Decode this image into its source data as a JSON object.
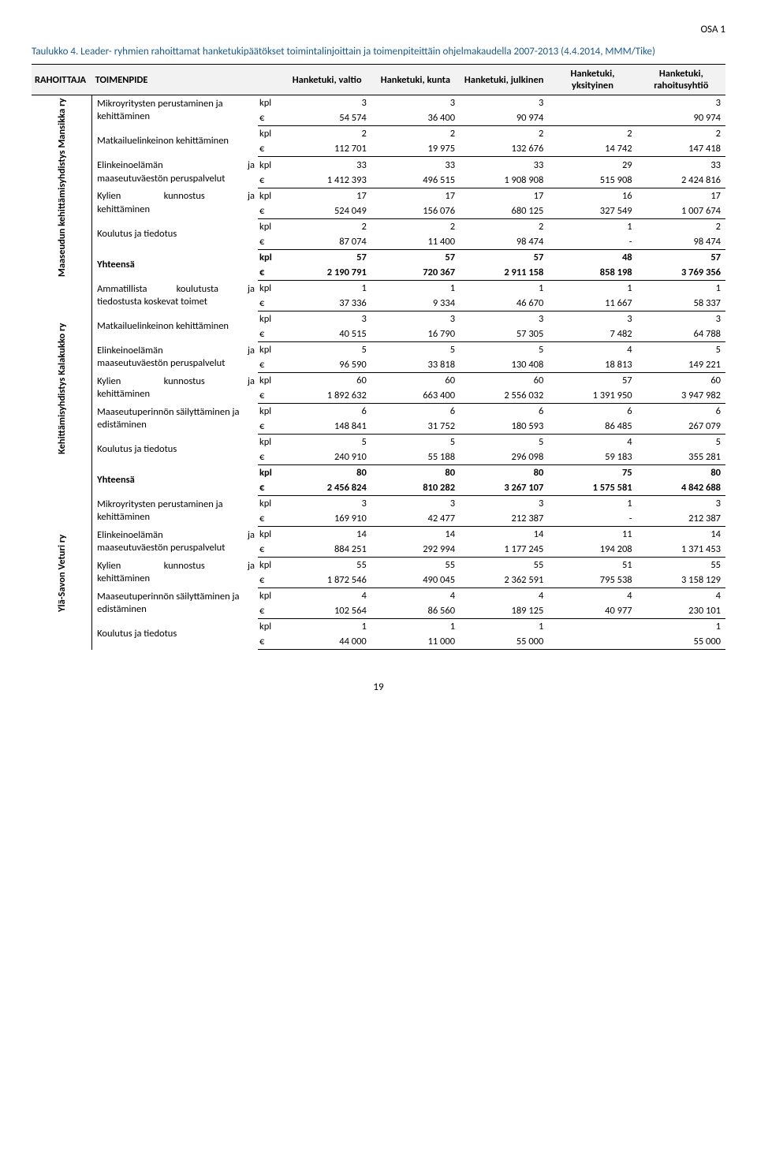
{
  "header": {
    "osa": "OSA 1"
  },
  "caption": "Taulukko 4. Leader- ryhmien rahoittamat hanketukipäätökset toimintalinjoittain ja toimenpiteittäin ohjelmakaudella 2007-2013 (4.4.2014, MMM/Tike)",
  "columns": {
    "rahoittaja": "RAHOITTAJA",
    "toimenpide": "TOIMENPIDE",
    "valtio": "Hanketuki, valtio",
    "kunta": "Hanketuki, kunta",
    "julkinen": "Hanketuki, julkinen",
    "yksityinen": "Hanketuki, yksityinen",
    "rahoitusyhtio": "Hanketuki, rahoitusyhtiö"
  },
  "units": {
    "kpl": "kpl",
    "eur": "€"
  },
  "groups": [
    {
      "rahoittaja": "Maaseudun kehittämisyhdistys Mansikka ry",
      "rows": [
        {
          "toimenpide": "Mikroyritysten perustaminen ja kehittäminen",
          "kpl": [
            "3",
            "3",
            "3",
            "",
            "3"
          ],
          "eur": [
            "54 574",
            "36 400",
            "90 974",
            "",
            "90 974"
          ]
        },
        {
          "toimenpide": "Matkailuelinkeinon kehittäminen",
          "kpl": [
            "2",
            "2",
            "2",
            "2",
            "2"
          ],
          "eur": [
            "112 701",
            "19 975",
            "132 676",
            "14 742",
            "147 418"
          ]
        },
        {
          "toimenpide": "Elinkeinoelämän ja maaseutuväestön peruspalvelut",
          "tp_split": [
            "Elinkeinoelämän",
            "ja",
            "maaseutuväestön peruspalvelut"
          ],
          "kpl": [
            "33",
            "33",
            "33",
            "29",
            "33"
          ],
          "eur": [
            "1 412 393",
            "496 515",
            "1 908 908",
            "515 908",
            "2 424 816"
          ]
        },
        {
          "toimenpide": "Kylien kunnostus ja kehittäminen",
          "tp_split": [
            "Kylien",
            "kunnostus",
            "ja",
            "kehittäminen"
          ],
          "kpl": [
            "17",
            "17",
            "17",
            "16",
            "17"
          ],
          "eur": [
            "524 049",
            "156 076",
            "680 125",
            "327 549",
            "1 007 674"
          ]
        },
        {
          "toimenpide": "Koulutus ja tiedotus",
          "kpl": [
            "2",
            "2",
            "2",
            "1",
            "2"
          ],
          "eur": [
            "87 074",
            "11 400",
            "98 474",
            "-",
            "98 474"
          ]
        }
      ],
      "yhteensa": {
        "label": "Yhteensä",
        "kpl": [
          "57",
          "57",
          "57",
          "48",
          "57"
        ],
        "eur": [
          "2 190 791",
          "720 367",
          "2 911 158",
          "858 198",
          "3 769 356"
        ]
      }
    },
    {
      "rahoittaja": "Kehittämisyhdistys Kalakukko ry",
      "rows": [
        {
          "toimenpide": "Ammatillista koulutusta ja tiedostusta koskevat toimet",
          "tp_split": [
            "Ammatillista",
            "koulutusta",
            "ja",
            "tiedostusta koskevat toimet"
          ],
          "kpl": [
            "1",
            "1",
            "1",
            "1",
            "1"
          ],
          "eur": [
            "37 336",
            "9 334",
            "46 670",
            "11 667",
            "58 337"
          ]
        },
        {
          "toimenpide": "Matkailuelinkeinon kehittäminen",
          "kpl": [
            "3",
            "3",
            "3",
            "3",
            "3"
          ],
          "eur": [
            "40 515",
            "16 790",
            "57 305",
            "7 482",
            "64 788"
          ]
        },
        {
          "toimenpide": "Elinkeinoelämän ja maaseutuväestön peruspalvelut",
          "tp_split": [
            "Elinkeinoelämän",
            "ja",
            "maaseutuväestön peruspalvelut"
          ],
          "kpl": [
            "5",
            "5",
            "5",
            "4",
            "5"
          ],
          "eur": [
            "96 590",
            "33 818",
            "130 408",
            "18 813",
            "149 221"
          ]
        },
        {
          "toimenpide": "Kylien kunnostus ja kehittäminen",
          "tp_split": [
            "Kylien",
            "kunnostus",
            "ja",
            "kehittäminen"
          ],
          "kpl": [
            "60",
            "60",
            "60",
            "57",
            "60"
          ],
          "eur": [
            "1 892 632",
            "663 400",
            "2 556 032",
            "1 391 950",
            "3 947 982"
          ]
        },
        {
          "toimenpide": "Maaseutuperinnön säilyttäminen ja edistäminen",
          "kpl": [
            "6",
            "6",
            "6",
            "6",
            "6"
          ],
          "eur": [
            "148 841",
            "31 752",
            "180 593",
            "86 485",
            "267 079"
          ]
        },
        {
          "toimenpide": "Koulutus ja tiedotus",
          "kpl": [
            "5",
            "5",
            "5",
            "4",
            "5"
          ],
          "eur": [
            "240 910",
            "55 188",
            "296 098",
            "59 183",
            "355 281"
          ]
        }
      ],
      "yhteensa": {
        "label": "Yhteensä",
        "kpl": [
          "80",
          "80",
          "80",
          "75",
          "80"
        ],
        "eur": [
          "2 456 824",
          "810 282",
          "3 267 107",
          "1 575 581",
          "4 842 688"
        ]
      }
    },
    {
      "rahoittaja": "Ylä-Savon Veturi ry",
      "rows": [
        {
          "toimenpide": "Mikroyritysten perustaminen ja kehittäminen",
          "kpl": [
            "3",
            "3",
            "3",
            "1",
            "3"
          ],
          "eur": [
            "169 910",
            "42 477",
            "212 387",
            "-",
            "212 387"
          ]
        },
        {
          "toimenpide": "Elinkeinoelämän ja maaseutuväestön peruspalvelut",
          "tp_split": [
            "Elinkeinoelämän",
            "ja",
            "maaseutuväestön peruspalvelut"
          ],
          "kpl": [
            "14",
            "14",
            "14",
            "11",
            "14"
          ],
          "eur": [
            "884 251",
            "292 994",
            "1 177 245",
            "194 208",
            "1 371 453"
          ]
        },
        {
          "toimenpide": "Kylien kunnostus ja kehittäminen",
          "tp_split": [
            "Kylien",
            "kunnostus",
            "ja",
            "kehittäminen"
          ],
          "kpl": [
            "55",
            "55",
            "55",
            "51",
            "55"
          ],
          "eur": [
            "1 872 546",
            "490 045",
            "2 362 591",
            "795 538",
            "3 158 129"
          ]
        },
        {
          "toimenpide": "Maaseutuperinnön säilyttäminen ja edistäminen",
          "kpl": [
            "4",
            "4",
            "4",
            "4",
            "4"
          ],
          "eur": [
            "102 564",
            "86 560",
            "189 125",
            "40 977",
            "230 101"
          ]
        },
        {
          "toimenpide": "Koulutus ja tiedotus",
          "kpl": [
            "1",
            "1",
            "1",
            "",
            "1"
          ],
          "eur": [
            "44 000",
            "11 000",
            "55 000",
            "",
            "55 000"
          ]
        }
      ]
    }
  ],
  "pagenum": "19"
}
